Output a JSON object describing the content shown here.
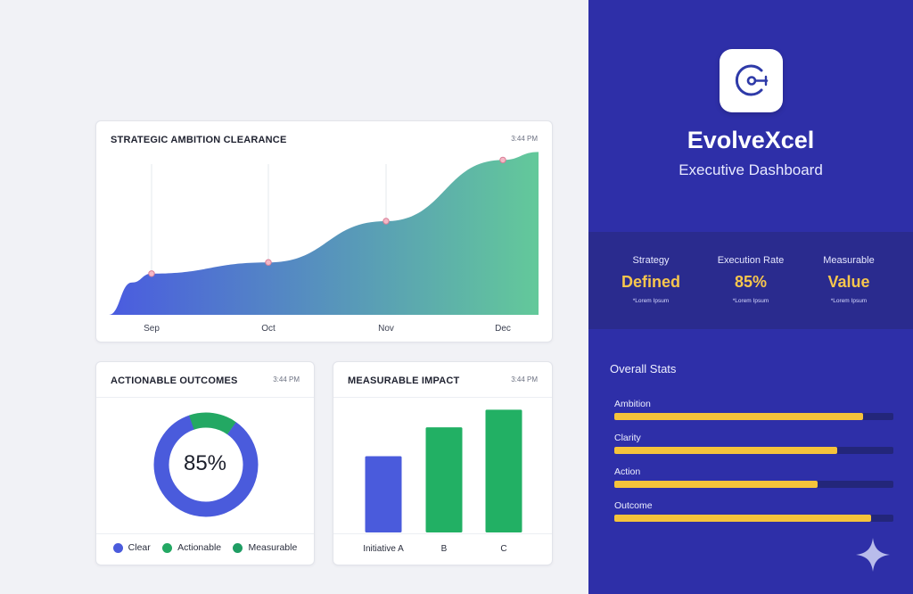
{
  "area_chart": {
    "title": "STRATEGIC AMBITION CLEARANCE",
    "time": "3:44 PM",
    "chart_data": {
      "type": "area",
      "categories": [
        "Sep",
        "Oct",
        "Nov",
        "Dec"
      ],
      "values": [
        0.33,
        0.42,
        0.75,
        1.24
      ],
      "ylim": [
        0,
        1.25
      ],
      "grid": "vertical-at-points",
      "fill_gradient": [
        "#4a5be0",
        "#63c99a"
      ]
    }
  },
  "donut_chart": {
    "title": "ACTIONABLE OUTCOMES",
    "time": "3:44 PM",
    "center_label": "85%",
    "chart_data": {
      "type": "pie",
      "categories": [
        "Clear",
        "Actionable",
        "Measurable"
      ],
      "values": [
        85,
        15,
        0
      ],
      "colors": [
        "#4a5bdc",
        "#23a863",
        "#1f9d63"
      ]
    },
    "legend": [
      {
        "label": "Clear",
        "color": "#4a5bdc"
      },
      {
        "label": "Actionable",
        "color": "#23a863"
      },
      {
        "label": "Measurable",
        "color": "#1f9d63"
      }
    ]
  },
  "bar_chart": {
    "title": "MEASURABLE IMPACT",
    "time": "3:44 PM",
    "chart_data": {
      "type": "bar",
      "categories": [
        "Initiative A",
        "B",
        "C"
      ],
      "values": [
        82,
        113,
        132
      ],
      "ylim": [
        0,
        140
      ],
      "colors": [
        "#4a5bdc",
        "#22b064",
        "#22b064"
      ]
    }
  },
  "brand": {
    "name": "EvolveXcel",
    "subtitle": "Executive Dashboard",
    "logo_icon": "target-gauge-icon"
  },
  "kpis": [
    {
      "label": "Strategy",
      "value": "Defined",
      "note": "*Lorem Ipsum"
    },
    {
      "label": "Execution Rate",
      "value": "85%",
      "note": "*Lorem Ipsum"
    },
    {
      "label": "Measurable",
      "value": "Value",
      "note": "*Lorem Ipsum"
    }
  ],
  "stats": {
    "title": "Overall Stats",
    "items": [
      {
        "label": "Ambition",
        "value": 0.89
      },
      {
        "label": "Clarity",
        "value": 0.8
      },
      {
        "label": "Action",
        "value": 0.73
      },
      {
        "label": "Outcome",
        "value": 0.92
      }
    ]
  },
  "colors": {
    "panel": "#2e2fa8",
    "kpi_band": "#2a2b8e",
    "accent_gold": "#f7c64d",
    "bar_fill": "#f5c33b",
    "bar_track": "#23267a"
  }
}
